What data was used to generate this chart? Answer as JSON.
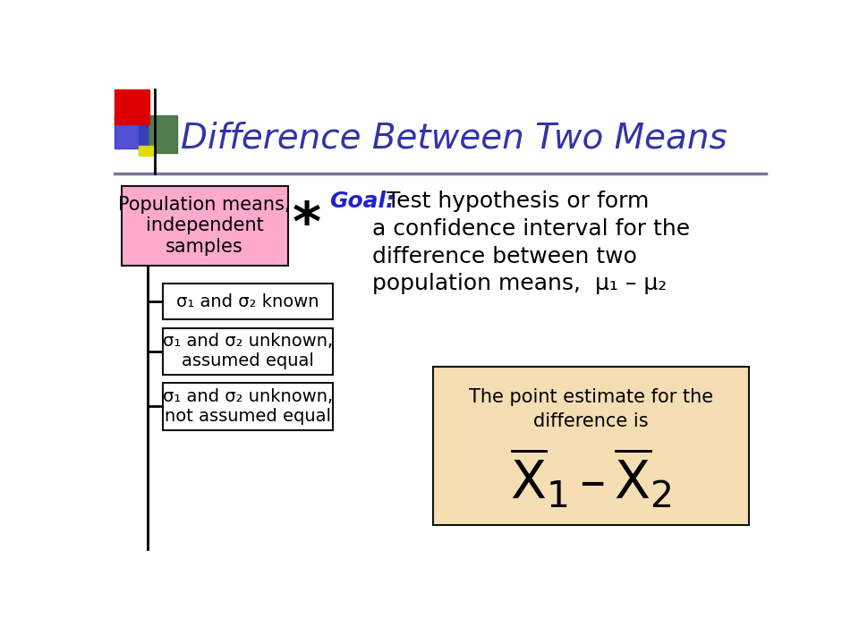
{
  "title": "Difference Between Two Means",
  "title_color": "#3333AA",
  "title_fontsize": 28,
  "bg_color": "#FFFFFF",
  "top_bar_color": "#777799",
  "box1_text": "Population means,\nindependent\nsamples",
  "box1_bg": "#FFAACC",
  "box1_edge": "#111111",
  "box2_text": "σ₁ and σ₂ known",
  "box3_text": "σ₁ and σ₂ unknown,\nassumed equal",
  "box4_text": "σ₁ and σ₂ unknown,\nnot assumed equal",
  "sub_box_bg": "#FFFFFF",
  "sub_box_edge": "#111111",
  "goal_label": "Goal:",
  "goal_label_color": "#2222CC",
  "goal_body": "  Test hypothesis or form\na confidence interval for the\ndifference between two\npopulation means,  μ₁ – μ₂",
  "goal_text_color": "#000000",
  "goal_fontsize": 18,
  "point_box_text": "The point estimate for the\ndifference is",
  "point_box_bg": "#F5DEB3",
  "point_box_edge": "#111111",
  "star_text": "*",
  "deco_red": "#DD0000",
  "deco_blue": "#3333CC",
  "deco_green": "#336633",
  "deco_yellow": "#DDDD00",
  "line_color": "#000000"
}
